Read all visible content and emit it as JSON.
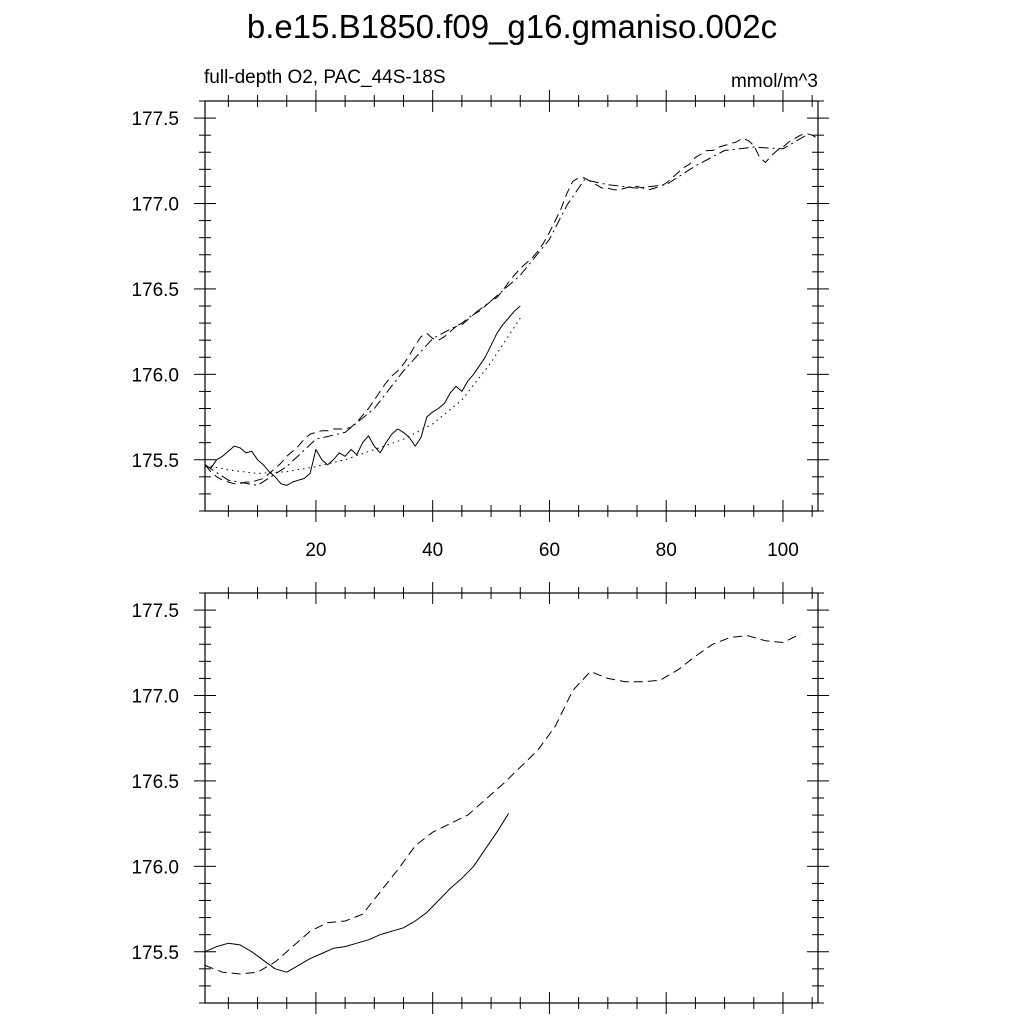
{
  "figure": {
    "title": "b.e15.B1850.f09_g16.gmaniso.002c"
  },
  "chart_data": [
    {
      "type": "line",
      "left_label": "full-depth O2, PAC_44S-18S",
      "right_label": "mmol/m^3",
      "xlim": [
        1,
        106
      ],
      "ylim": [
        175.2,
        177.6
      ],
      "x_major_ticks": [
        20,
        40,
        60,
        80,
        100
      ],
      "x_minor_step": 5,
      "y_major_ticks": [
        175.5,
        176.0,
        176.5,
        177.0,
        177.5
      ],
      "y_minor_step": 0.1,
      "y_tick_format": 1,
      "show_x_tick_labels": true,
      "series": [
        {
          "style": "solid",
          "x": [
            1,
            2,
            3,
            4,
            5,
            6,
            7,
            8,
            9,
            10,
            11,
            12,
            13,
            14,
            15,
            16,
            17,
            18,
            19,
            20,
            21,
            22,
            23,
            24,
            25,
            26,
            27,
            28,
            29,
            30,
            31,
            32,
            33,
            34,
            35,
            36,
            37,
            38,
            39,
            40,
            41,
            42,
            43,
            44,
            45,
            46,
            47,
            48,
            49,
            50,
            51,
            52,
            53,
            54,
            55
          ],
          "y": [
            175.47,
            175.45,
            175.5,
            175.52,
            175.55,
            175.58,
            175.57,
            175.54,
            175.55,
            175.5,
            175.47,
            175.43,
            175.4,
            175.36,
            175.35,
            175.37,
            175.38,
            175.39,
            175.42,
            175.56,
            175.5,
            175.47,
            175.5,
            175.54,
            175.52,
            175.56,
            175.53,
            175.6,
            175.64,
            175.58,
            175.54,
            175.6,
            175.65,
            175.68,
            175.66,
            175.63,
            175.58,
            175.63,
            175.75,
            175.78,
            175.8,
            175.83,
            175.89,
            175.93,
            175.9,
            175.96,
            176.0,
            176.05,
            176.1,
            176.17,
            176.24,
            176.29,
            176.33,
            176.37,
            176.4
          ]
        },
        {
          "style": "dashed",
          "x": [
            1,
            2,
            3,
            4,
            5,
            6,
            7,
            8,
            9,
            10,
            11,
            12,
            13,
            14,
            15,
            16,
            17,
            18,
            19,
            20,
            21,
            22,
            23,
            24,
            25,
            26,
            27,
            28,
            29,
            30,
            31,
            32,
            33,
            34,
            35,
            36,
            37,
            38,
            39,
            40,
            41,
            42,
            43,
            44,
            45,
            46,
            47,
            48,
            49,
            50,
            51,
            52,
            53,
            54,
            55,
            56,
            57,
            58,
            59,
            60,
            61,
            62,
            63,
            64,
            65,
            66,
            67,
            68,
            69,
            70,
            71,
            72,
            73,
            74,
            75,
            76,
            77,
            78,
            79,
            80,
            81,
            82,
            83,
            84,
            85,
            86,
            87,
            88,
            89,
            90,
            91,
            92,
            93,
            94,
            95,
            96,
            97,
            98,
            99,
            100,
            101,
            102,
            103,
            104,
            105,
            106
          ],
          "y": [
            175.47,
            175.43,
            175.4,
            175.38,
            175.37,
            175.36,
            175.36,
            175.37,
            175.37,
            175.38,
            175.39,
            175.42,
            175.45,
            175.48,
            175.52,
            175.55,
            175.58,
            175.62,
            175.65,
            175.66,
            175.67,
            175.67,
            175.68,
            175.68,
            175.68,
            175.69,
            175.72,
            175.76,
            175.8,
            175.85,
            175.9,
            175.95,
            175.99,
            176.02,
            176.06,
            176.11,
            176.17,
            176.22,
            176.24,
            176.21,
            176.2,
            176.22,
            176.25,
            176.28,
            176.29,
            176.32,
            176.35,
            176.37,
            176.4,
            176.43,
            176.45,
            176.49,
            176.54,
            176.58,
            176.62,
            176.65,
            176.68,
            176.72,
            176.77,
            176.83,
            176.9,
            176.97,
            177.06,
            177.13,
            177.15,
            177.15,
            177.13,
            177.11,
            177.09,
            177.09,
            177.08,
            177.08,
            177.09,
            177.1,
            177.1,
            177.09,
            177.08,
            177.09,
            177.1,
            177.12,
            177.15,
            177.18,
            177.21,
            177.23,
            177.27,
            177.29,
            177.31,
            177.31,
            177.33,
            177.34,
            177.35,
            177.36,
            177.38,
            177.37,
            177.34,
            177.27,
            177.24,
            177.28,
            177.31,
            177.33,
            177.36,
            177.38,
            177.4,
            177.41,
            177.4,
            177.38
          ]
        },
        {
          "style": "dotted",
          "x": [
            1,
            5,
            10,
            15,
            20,
            25,
            30,
            35,
            40,
            45,
            50,
            55
          ],
          "y": [
            175.47,
            175.44,
            175.42,
            175.43,
            175.46,
            175.5,
            175.56,
            175.62,
            175.71,
            175.85,
            176.07,
            176.33
          ]
        },
        {
          "style": "dashdot",
          "x": [
            1,
            5,
            10,
            15,
            20,
            25,
            30,
            35,
            40,
            45,
            50,
            55,
            60,
            63,
            66,
            70,
            75,
            80,
            85,
            90,
            95,
            100,
            104
          ],
          "y": [
            175.47,
            175.38,
            175.35,
            175.46,
            175.62,
            175.66,
            175.8,
            176.02,
            176.21,
            176.3,
            176.43,
            176.58,
            176.79,
            176.99,
            177.14,
            177.11,
            177.09,
            177.11,
            177.22,
            177.31,
            177.33,
            177.32,
            177.4
          ]
        }
      ]
    },
    {
      "type": "line",
      "left_label": "",
      "right_label": "",
      "xlim": [
        1,
        106
      ],
      "ylim": [
        175.2,
        177.6
      ],
      "x_major_ticks": [
        20,
        40,
        60,
        80,
        100
      ],
      "x_minor_step": 5,
      "y_major_ticks": [
        175.5,
        176.0,
        176.5,
        177.0,
        177.5
      ],
      "y_minor_step": 0.1,
      "y_tick_format": 1,
      "show_x_tick_labels": false,
      "series": [
        {
          "style": "solid",
          "x": [
            1,
            3,
            5,
            7,
            9,
            11,
            13,
            15,
            17,
            19,
            21,
            23,
            25,
            27,
            29,
            31,
            33,
            35,
            37,
            39,
            41,
            43,
            45,
            47,
            49,
            51,
            53
          ],
          "y": [
            175.5,
            175.53,
            175.55,
            175.54,
            175.5,
            175.45,
            175.4,
            175.38,
            175.42,
            175.46,
            175.49,
            175.52,
            175.53,
            175.55,
            175.57,
            175.6,
            175.62,
            175.64,
            175.68,
            175.73,
            175.8,
            175.87,
            175.93,
            176.0,
            176.1,
            176.2,
            176.31
          ]
        },
        {
          "style": "dashed",
          "x": [
            1,
            4,
            7,
            10,
            13,
            16,
            19,
            22,
            25,
            28,
            31,
            34,
            37,
            40,
            43,
            46,
            49,
            52,
            55,
            58,
            61,
            64,
            67,
            70,
            73,
            76,
            79,
            82,
            85,
            88,
            91,
            94,
            97,
            100,
            103
          ],
          "y": [
            175.42,
            175.38,
            175.37,
            175.38,
            175.44,
            175.53,
            175.62,
            175.67,
            175.68,
            175.72,
            175.85,
            175.98,
            176.12,
            176.2,
            176.25,
            176.3,
            176.39,
            176.48,
            176.58,
            176.68,
            176.82,
            177.03,
            177.14,
            177.1,
            177.08,
            177.08,
            177.09,
            177.15,
            177.23,
            177.3,
            177.34,
            177.35,
            177.32,
            177.31,
            177.36
          ]
        }
      ]
    }
  ]
}
